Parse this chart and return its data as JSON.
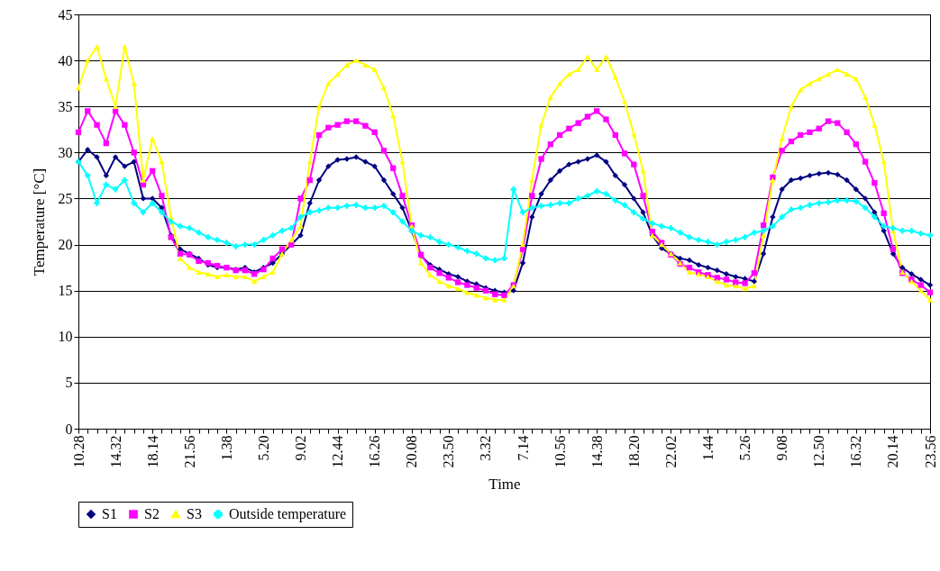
{
  "chart_data": {
    "type": "line",
    "xlabel": "Time",
    "ylabel": "Temperature [°C]",
    "categories": [
      "10.28",
      null,
      null,
      null,
      "14.32",
      null,
      null,
      null,
      "18.14",
      null,
      null,
      null,
      "21.56",
      null,
      null,
      null,
      "1.38",
      null,
      null,
      null,
      "5.20",
      null,
      null,
      null,
      "9.02",
      null,
      null,
      null,
      "12.44",
      null,
      null,
      null,
      "16.26",
      null,
      null,
      null,
      "20.08",
      null,
      null,
      null,
      "23.50",
      null,
      null,
      null,
      "3.32",
      null,
      null,
      null,
      "7.14",
      null,
      null,
      null,
      "10.56",
      null,
      null,
      null,
      "14.38",
      null,
      null,
      null,
      "18.20",
      null,
      null,
      null,
      "22.02",
      null,
      null,
      null,
      "1.44",
      null,
      null,
      null,
      "5.26",
      null,
      null,
      null,
      "9.08",
      null,
      null,
      null,
      "12.50",
      null,
      null,
      null,
      "16.32",
      null,
      null,
      null,
      "20.14",
      null,
      null,
      null,
      "23.56"
    ],
    "series": [
      {
        "name": "S1",
        "color": "#000080",
        "marker": "diamond",
        "values": [
          29,
          30.3,
          29.5,
          27.5,
          29.5,
          28.5,
          29,
          25,
          25,
          24,
          21,
          19.5,
          19,
          18.5,
          17.8,
          17.5,
          17.5,
          17.3,
          17.5,
          17,
          17.5,
          18,
          19,
          20,
          21,
          24.5,
          27,
          28.5,
          29.2,
          29.3,
          29.5,
          29,
          28.5,
          27,
          25.5,
          24,
          21.5,
          18.8,
          17.8,
          17.3,
          16.8,
          16.5,
          16,
          15.7,
          15.3,
          15,
          14.8,
          15,
          18,
          23,
          25.5,
          27,
          28,
          28.7,
          29,
          29.3,
          29.7,
          29,
          27.5,
          26.5,
          25,
          23.5,
          21,
          19.6,
          19,
          18.5,
          18.3,
          17.8,
          17.5,
          17.2,
          16.8,
          16.5,
          16.3,
          16,
          19,
          23,
          26,
          27,
          27.2,
          27.5,
          27.7,
          27.8,
          27.6,
          27,
          26,
          25,
          23.5,
          21.5,
          19,
          17.5,
          16.8,
          16.2,
          15.6
        ]
      },
      {
        "name": "S2",
        "color": "#ff00ff",
        "marker": "square",
        "values": [
          32.2,
          34.5,
          33,
          31,
          34.5,
          33,
          30,
          26.5,
          28,
          25.3,
          20.8,
          19,
          18.9,
          18.2,
          18,
          17.7,
          17.5,
          17.2,
          17.2,
          16.8,
          17.3,
          18.5,
          19.5,
          20,
          25,
          27,
          31.9,
          32.7,
          33,
          33.4,
          33.4,
          32.9,
          32.2,
          30.2,
          28.3,
          25.3,
          22.1,
          18.9,
          17.5,
          16.9,
          16.4,
          15.9,
          15.6,
          15.3,
          15,
          14.6,
          14.5,
          15.6,
          19.5,
          25.3,
          29.3,
          30.9,
          31.9,
          32.6,
          33.2,
          33.9,
          34.5,
          33.6,
          31.9,
          29.9,
          28.7,
          25.3,
          21.4,
          20.2,
          18.9,
          17.9,
          17.5,
          17,
          16.7,
          16.4,
          16.2,
          15.9,
          15.8,
          16.9,
          22.1,
          27.3,
          30.2,
          31.2,
          31.9,
          32.2,
          32.6,
          33.4,
          33.2,
          32.2,
          30.9,
          29,
          26.7,
          23.4,
          19.5,
          16.9,
          16.2,
          15.6,
          14.8
        ]
      },
      {
        "name": "S3",
        "color": "#ffff00",
        "marker": "triangle",
        "values": [
          37,
          40,
          41.5,
          38,
          35,
          41.5,
          37.5,
          27,
          31.5,
          29,
          23,
          18.5,
          17.5,
          17,
          16.8,
          16.5,
          16.7,
          16.5,
          16.5,
          16,
          16.5,
          17,
          19,
          20.5,
          22,
          29,
          35,
          37.5,
          38.5,
          39.5,
          40,
          39.5,
          39,
          37,
          34,
          29,
          22,
          18,
          16.7,
          16,
          15.5,
          15.2,
          14.8,
          14.5,
          14.2,
          14,
          14,
          15.5,
          20,
          27,
          33,
          36,
          37.5,
          38.5,
          39,
          40.4,
          39,
          40.4,
          38.2,
          35.5,
          32,
          28,
          21,
          20,
          19,
          18,
          17,
          16.8,
          16.5,
          16,
          15.6,
          15.5,
          15.2,
          15.5,
          21,
          27,
          31.5,
          35,
          36.8,
          37.5,
          38,
          38.5,
          39,
          38.5,
          38,
          36,
          33,
          29,
          21.5,
          17,
          16,
          15,
          14
        ]
      },
      {
        "name": "Outside temperature",
        "color": "#00ffff",
        "marker": "cross",
        "values": [
          29,
          27.5,
          24.5,
          26.5,
          26,
          27,
          24.5,
          23.5,
          24.5,
          23.5,
          22.5,
          22,
          21.8,
          21.3,
          20.8,
          20.5,
          20.2,
          19.8,
          20,
          20,
          20.5,
          21,
          21.5,
          21.8,
          23,
          23.5,
          23.7,
          24,
          24,
          24.2,
          24.3,
          24,
          24,
          24.2,
          23.5,
          22.5,
          21.5,
          21,
          20.8,
          20.3,
          20,
          19.7,
          19.3,
          19,
          18.5,
          18.3,
          18.5,
          26,
          23.5,
          24,
          24.2,
          24.3,
          24.5,
          24.5,
          25,
          25.3,
          25.8,
          25.5,
          24.8,
          24.3,
          23.5,
          22.8,
          22.3,
          22,
          21.8,
          21.3,
          20.8,
          20.5,
          20.3,
          20,
          20.3,
          20.5,
          20.8,
          21.3,
          21.5,
          22,
          23,
          23.8,
          24,
          24.3,
          24.5,
          24.6,
          24.8,
          24.8,
          24.7,
          24,
          23,
          22,
          21.8,
          21.5,
          21.5,
          21.2,
          21
        ]
      }
    ],
    "ylim": [
      0,
      45
    ],
    "yticks": [
      0,
      5,
      10,
      15,
      20,
      25,
      30,
      35,
      40,
      45
    ],
    "grid": "y",
    "legend": "bottom"
  }
}
